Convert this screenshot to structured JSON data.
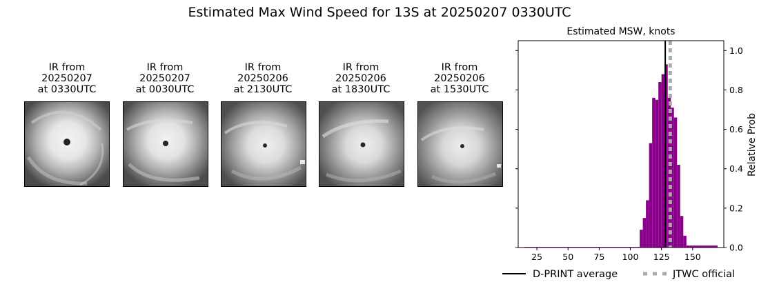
{
  "suptitle": "Estimated Max Wind Speed for 13S at 20250207 0330UTC",
  "ir_panels": [
    {
      "line1": "IR from",
      "line2": "20250207",
      "line3": "at 0330UTC"
    },
    {
      "line1": "IR from",
      "line2": "20250207",
      "line3": "at 0030UTC"
    },
    {
      "line1": "IR from",
      "line2": "20250206",
      "line3": "at 2130UTC"
    },
    {
      "line1": "IR from",
      "line2": "20250206",
      "line3": "at 1830UTC"
    },
    {
      "line1": "IR from",
      "line2": "20250206",
      "line3": "at 1530UTC"
    }
  ],
  "chart_data": {
    "type": "bar",
    "title": "Estimated MSW, knots",
    "xlabel": "",
    "ylabel": "Relative Prob",
    "xlim": [
      10,
      175
    ],
    "ylim": [
      0,
      1.05
    ],
    "x_ticks": [
      25,
      50,
      75,
      100,
      125,
      150
    ],
    "y_ticks": [
      0.0,
      0.2,
      0.4,
      0.6,
      0.8,
      1.0
    ],
    "y_tick_labels": [
      "0.0",
      "0.2",
      "0.4",
      "0.6",
      "0.8",
      "1.0"
    ],
    "grid": false,
    "bar_color": "#8b008b",
    "bin_width": 2.5,
    "bins": [
      {
        "x": 15,
        "v": 0.003
      },
      {
        "x": 17.5,
        "v": 0.003
      },
      {
        "x": 20,
        "v": 0.003
      },
      {
        "x": 22.5,
        "v": 0.003
      },
      {
        "x": 25,
        "v": 0.003
      },
      {
        "x": 27.5,
        "v": 0.003
      },
      {
        "x": 30,
        "v": 0.003
      },
      {
        "x": 32.5,
        "v": 0.003
      },
      {
        "x": 35,
        "v": 0.003
      },
      {
        "x": 37.5,
        "v": 0.003
      },
      {
        "x": 40,
        "v": 0.003
      },
      {
        "x": 42.5,
        "v": 0.003
      },
      {
        "x": 45,
        "v": 0.003
      },
      {
        "x": 47.5,
        "v": 0.003
      },
      {
        "x": 50,
        "v": 0.003
      },
      {
        "x": 52.5,
        "v": 0.003
      },
      {
        "x": 55,
        "v": 0.003
      },
      {
        "x": 57.5,
        "v": 0.003
      },
      {
        "x": 60,
        "v": 0.003
      },
      {
        "x": 62.5,
        "v": 0.003
      },
      {
        "x": 65,
        "v": 0.003
      },
      {
        "x": 67.5,
        "v": 0.003
      },
      {
        "x": 70,
        "v": 0.003
      },
      {
        "x": 72.5,
        "v": 0.003
      },
      {
        "x": 75,
        "v": 0.003
      },
      {
        "x": 77.5,
        "v": 0.003
      },
      {
        "x": 80,
        "v": 0.003
      },
      {
        "x": 82.5,
        "v": 0.003
      },
      {
        "x": 85,
        "v": 0.003
      },
      {
        "x": 87.5,
        "v": 0.003
      },
      {
        "x": 90,
        "v": 0.003
      },
      {
        "x": 92.5,
        "v": 0.003
      },
      {
        "x": 95,
        "v": 0.003
      },
      {
        "x": 97.5,
        "v": 0.003
      },
      {
        "x": 100,
        "v": 0.003
      },
      {
        "x": 102.5,
        "v": 0.003
      },
      {
        "x": 105,
        "v": 0.003
      },
      {
        "x": 107.5,
        "v": 0.09
      },
      {
        "x": 110,
        "v": 0.15
      },
      {
        "x": 112.5,
        "v": 0.24
      },
      {
        "x": 115,
        "v": 0.53
      },
      {
        "x": 117.5,
        "v": 0.76
      },
      {
        "x": 120,
        "v": 0.75
      },
      {
        "x": 122.5,
        "v": 0.84
      },
      {
        "x": 125,
        "v": 0.88
      },
      {
        "x": 127.5,
        "v": 0.93
      },
      {
        "x": 130,
        "v": 0.76
      },
      {
        "x": 132.5,
        "v": 0.71
      },
      {
        "x": 135,
        "v": 0.66
      },
      {
        "x": 137.5,
        "v": 0.42
      },
      {
        "x": 140,
        "v": 0.16
      },
      {
        "x": 142.5,
        "v": 0.06
      },
      {
        "x": 145,
        "v": 0.01
      },
      {
        "x": 147.5,
        "v": 0.01
      },
      {
        "x": 150,
        "v": 0.01
      },
      {
        "x": 152.5,
        "v": 0.01
      },
      {
        "x": 155,
        "v": 0.01
      },
      {
        "x": 157.5,
        "v": 0.01
      },
      {
        "x": 160,
        "v": 0.01
      },
      {
        "x": 162.5,
        "v": 0.01
      },
      {
        "x": 165,
        "v": 0.01
      },
      {
        "x": 167.5,
        "v": 0.01
      }
    ],
    "dprint_average": 128,
    "jtwc_official": 132,
    "dprint_color": "#000000",
    "jtwc_color": "#a9a9a9",
    "legend": {
      "placement": "bottom",
      "entries": [
        {
          "label": "D-PRINT average",
          "style": "solid",
          "color": "#000000"
        },
        {
          "label": "JTWC official",
          "style": "dotted",
          "color": "#a9a9a9"
        }
      ]
    }
  }
}
